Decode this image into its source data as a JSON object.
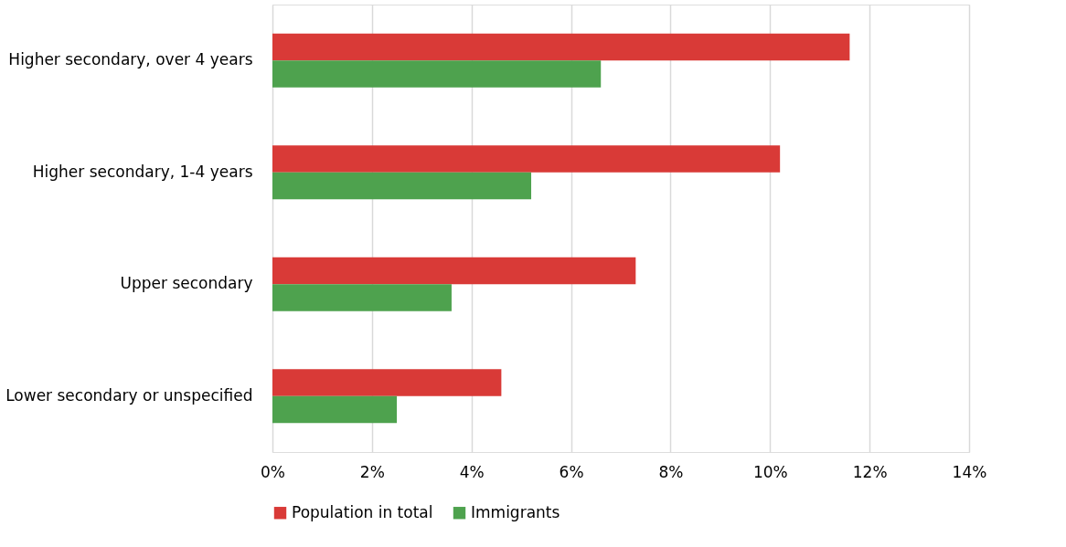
{
  "chart_data": {
    "type": "bar",
    "orientation": "horizontal",
    "categories": [
      "Higher secondary, over 4 years",
      "Higher secondary, 1-4 years",
      "Upper secondary",
      "Lower secondary or unspecified"
    ],
    "series": [
      {
        "name": "Population in total",
        "color": "#d93a37",
        "values": [
          11.6,
          10.2,
          7.3,
          4.6
        ]
      },
      {
        "name": "Immigrants",
        "color": "#4ea24e",
        "values": [
          6.6,
          5.2,
          3.6,
          2.5
        ]
      }
    ],
    "xlim": [
      0,
      14
    ],
    "xticks": [
      {
        "value": 0,
        "label": "0%"
      },
      {
        "value": 2,
        "label": "2%"
      },
      {
        "value": 4,
        "label": "4%"
      },
      {
        "value": 6,
        "label": "6%"
      },
      {
        "value": 8,
        "label": "8%"
      },
      {
        "value": 10,
        "label": "10%"
      },
      {
        "value": 12,
        "label": "12%"
      },
      {
        "value": 14,
        "label": "14%"
      }
    ],
    "grid": "x",
    "legend": "bottom"
  }
}
